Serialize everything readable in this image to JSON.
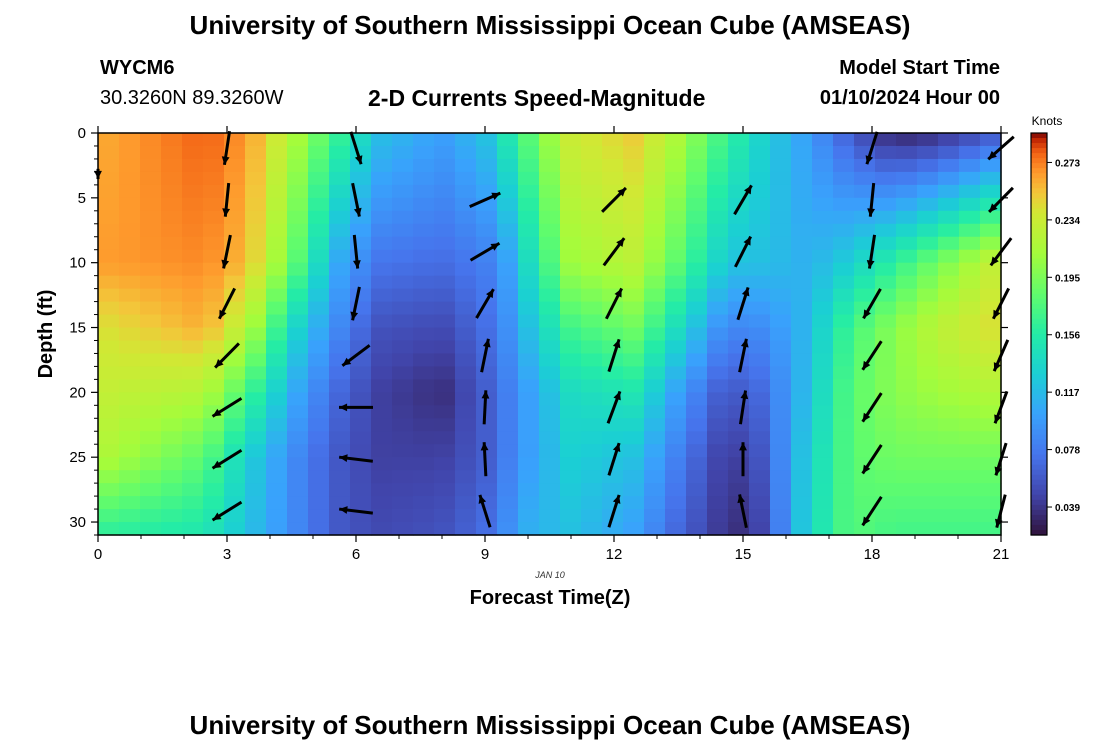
{
  "header": {
    "title": "University of Southern Mississippi Ocean Cube (AMSEAS)",
    "footer_title": "University of Southern Mississippi Ocean Cube (AMSEAS)",
    "station_id": "WYCM6",
    "coordinates": "30.3260N  89.3260W",
    "plot_title": "2-D Currents Speed-Magnitude",
    "model_start_label": "Model Start Time",
    "model_start_value": "01/10/2024 Hour 00",
    "date_label": "JAN 10"
  },
  "chart_data": {
    "type": "heatmap",
    "title": "2-D Currents Speed-Magnitude",
    "xlabel": "Forecast Time(Z)",
    "ylabel": "Depth (ft)",
    "xlim": [
      0,
      21
    ],
    "ylim": [
      0,
      31
    ],
    "y_inverted": true,
    "x_ticks": [
      0,
      3,
      6,
      9,
      12,
      15,
      18,
      21
    ],
    "x_tick_labels": [
      "0",
      "3",
      "6",
      "9",
      "12",
      "15",
      "18",
      "21"
    ],
    "y_ticks": [
      0,
      5,
      10,
      15,
      20,
      25,
      30
    ],
    "y_tick_labels": [
      "0",
      "5",
      "10",
      "15",
      "20",
      "25",
      "30"
    ],
    "colorbar": {
      "label": "Knots",
      "tick_labels": [
        "0.273",
        "0.234",
        "0.195",
        "0.156",
        "0.117",
        "0.078",
        "0.039"
      ],
      "tick_values": [
        0.273,
        0.234,
        0.195,
        0.156,
        0.117,
        0.078,
        0.039
      ],
      "range": [
        0.02,
        0.293
      ],
      "colormap": "turbo"
    },
    "speed_keyframes": {
      "x": [
        0,
        2.5,
        3.5,
        4.5,
        5.5,
        6.5,
        8,
        9,
        9.5,
        10,
        11,
        12.5,
        13.5,
        14.5,
        15,
        15.5,
        16.5,
        17.5,
        18.5,
        19.5,
        21
      ],
      "depths": [
        0,
        10,
        15,
        20,
        25,
        31
      ],
      "values": [
        [
          0.26,
          0.265,
          0.24,
          0.23,
          0.22,
          0.16
        ],
        [
          0.28,
          0.27,
          0.26,
          0.22,
          0.18,
          0.15
        ],
        [
          0.265,
          0.255,
          0.22,
          0.17,
          0.13,
          0.12
        ],
        [
          0.22,
          0.19,
          0.14,
          0.11,
          0.09,
          0.09
        ],
        [
          0.17,
          0.11,
          0.09,
          0.07,
          0.06,
          0.06
        ],
        [
          0.12,
          0.075,
          0.055,
          0.045,
          0.045,
          0.05
        ],
        [
          0.1,
          0.07,
          0.05,
          0.035,
          0.045,
          0.055
        ],
        [
          0.12,
          0.08,
          0.07,
          0.06,
          0.06,
          0.07
        ],
        [
          0.15,
          0.1,
          0.09,
          0.08,
          0.08,
          0.09
        ],
        [
          0.18,
          0.14,
          0.12,
          0.1,
          0.1,
          0.11
        ],
        [
          0.235,
          0.21,
          0.17,
          0.14,
          0.13,
          0.12
        ],
        [
          0.25,
          0.225,
          0.19,
          0.15,
          0.12,
          0.1
        ],
        [
          0.215,
          0.18,
          0.14,
          0.1,
          0.08,
          0.065
        ],
        [
          0.17,
          0.13,
          0.09,
          0.06,
          0.045,
          0.04
        ],
        [
          0.15,
          0.12,
          0.085,
          0.06,
          0.045,
          0.035
        ],
        [
          0.13,
          0.12,
          0.09,
          0.07,
          0.06,
          0.05
        ],
        [
          0.1,
          0.11,
          0.115,
          0.12,
          0.13,
          0.135
        ],
        [
          0.06,
          0.13,
          0.17,
          0.18,
          0.18,
          0.18
        ],
        [
          0.03,
          0.16,
          0.2,
          0.2,
          0.19,
          0.17
        ],
        [
          0.035,
          0.19,
          0.225,
          0.21,
          0.19,
          0.17
        ],
        [
          0.06,
          0.235,
          0.245,
          0.22,
          0.19,
          0.17
        ]
      ]
    },
    "vectors": [
      {
        "t": 0,
        "depths": [
          2
        ],
        "dir": [
          [
            0.0,
            0.3
          ]
        ]
      },
      {
        "t": 3,
        "depths": [
          0,
          4,
          8,
          12,
          16,
          20,
          24,
          28
        ],
        "dir": [
          [
            -0.15,
            0.99
          ],
          [
            -0.1,
            0.99
          ],
          [
            -0.2,
            0.98
          ],
          [
            -0.45,
            0.89
          ],
          [
            -0.7,
            0.71
          ],
          [
            -0.85,
            0.53
          ],
          [
            -0.85,
            0.53
          ],
          [
            -0.85,
            0.53
          ]
        ]
      },
      {
        "t": 6,
        "depths": [
          0,
          4,
          8,
          12,
          16,
          20,
          24,
          28
        ],
        "dir": [
          [
            0.3,
            0.95
          ],
          [
            0.2,
            0.98
          ],
          [
            0.1,
            0.99
          ],
          [
            -0.2,
            0.98
          ],
          [
            -0.8,
            0.6
          ],
          [
            -1.0,
            0.0
          ],
          [
            -0.99,
            -0.12
          ],
          [
            -0.99,
            -0.12
          ]
        ]
      },
      {
        "t": 9,
        "depths": [
          4,
          8,
          12,
          16,
          20,
          24,
          28
        ],
        "dir": [
          [
            0.9,
            -0.4
          ],
          [
            0.85,
            -0.5
          ],
          [
            0.5,
            -0.85
          ],
          [
            0.2,
            -0.98
          ],
          [
            0.05,
            -1.0
          ],
          [
            -0.05,
            -1.0
          ],
          [
            -0.3,
            -0.95
          ]
        ]
      },
      {
        "t": 12,
        "depths": [
          4,
          8,
          12,
          16,
          20,
          24,
          28
        ],
        "dir": [
          [
            0.7,
            -0.7
          ],
          [
            0.6,
            -0.8
          ],
          [
            0.45,
            -0.89
          ],
          [
            0.3,
            -0.95
          ],
          [
            0.35,
            -0.94
          ],
          [
            0.3,
            -0.95
          ],
          [
            0.3,
            -0.95
          ]
        ]
      },
      {
        "t": 15,
        "depths": [
          4,
          8,
          12,
          16,
          20,
          24,
          28
        ],
        "dir": [
          [
            0.5,
            -0.85
          ],
          [
            0.45,
            -0.89
          ],
          [
            0.3,
            -0.95
          ],
          [
            0.2,
            -0.98
          ],
          [
            0.15,
            -0.99
          ],
          [
            0.0,
            -1.0
          ],
          [
            -0.2,
            -0.98
          ]
        ]
      },
      {
        "t": 18,
        "depths": [
          0,
          4,
          8,
          12,
          16,
          20,
          24,
          28
        ],
        "dir": [
          [
            -0.3,
            0.95
          ],
          [
            -0.1,
            0.99
          ],
          [
            -0.15,
            0.99
          ],
          [
            -0.5,
            0.87
          ],
          [
            -0.55,
            0.84
          ],
          [
            -0.55,
            0.84
          ],
          [
            -0.55,
            0.84
          ],
          [
            -0.55,
            0.84
          ]
        ]
      },
      {
        "t": 21,
        "depths": [
          0,
          4,
          8,
          12,
          16,
          20,
          24,
          28
        ],
        "dir": [
          [
            -0.75,
            0.66
          ],
          [
            -0.7,
            0.71
          ],
          [
            -0.6,
            0.8
          ],
          [
            -0.45,
            0.89
          ],
          [
            -0.4,
            0.92
          ],
          [
            -0.35,
            0.94
          ],
          [
            -0.3,
            0.95
          ],
          [
            -0.25,
            0.97
          ]
        ]
      }
    ]
  }
}
